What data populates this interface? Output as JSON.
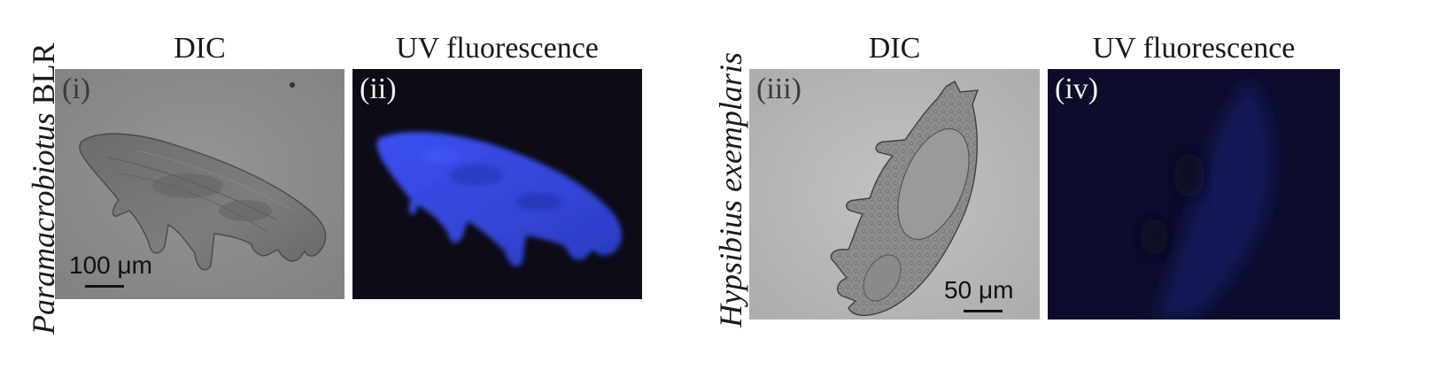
{
  "figure": {
    "species": [
      {
        "genus": "Paramacrobiotus",
        "strain": "BLR"
      },
      {
        "genus": "Hypsibius exemplaris",
        "strain": ""
      }
    ],
    "columns": [
      "DIC",
      "UV fluorescence",
      "DIC",
      "UV fluorescence"
    ],
    "panels": [
      {
        "tag": "(i)",
        "kind": "DIC",
        "bg": "#8c8c8c"
      },
      {
        "tag": "(ii)",
        "kind": "UV fluorescence",
        "bg": "#0c0b16",
        "glow": "#3a4ce6"
      },
      {
        "tag": "(iii)",
        "kind": "DIC",
        "bg": "#b8b8b8"
      },
      {
        "tag": "(iv)",
        "kind": "UV fluorescence",
        "bg": "#0d0c2c",
        "glow": "#141a6a"
      }
    ],
    "scalebars": [
      {
        "value": "100",
        "unit": "μm"
      },
      {
        "value": "50",
        "unit": "μm"
      }
    ]
  }
}
